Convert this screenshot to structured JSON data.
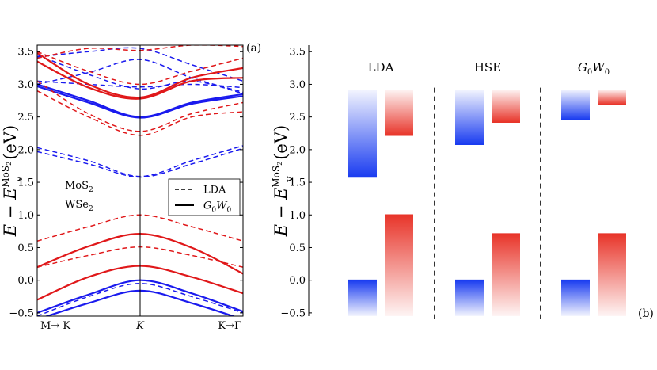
{
  "chart_data": [
    {
      "type": "line",
      "panel_label": "(a)",
      "ylabel": {
        "main": "E − E",
        "sub": "v",
        "sup": "MoS",
        "sup_sub": "2",
        "unit": "(eV)"
      },
      "x_tick_labels": [
        "M→ K",
        "K",
        "K→Γ"
      ],
      "ylim": [
        -0.55,
        3.6
      ],
      "y_ticks": [
        -0.5,
        0.0,
        0.5,
        1.0,
        1.5,
        2.0,
        2.5,
        3.0,
        3.5
      ],
      "y_tick_labels": [
        "−0.5",
        "0.0",
        "0.5",
        "1.0",
        "1.5",
        "2.0",
        "2.5",
        "3.0",
        "3.5"
      ],
      "legend": {
        "position": "center-right",
        "entries": [
          {
            "label": "LDA",
            "style": "dashed"
          },
          {
            "label": "G",
            "sub": "0",
            "label2": "W",
            "sub2": "0",
            "style": "solid"
          }
        ]
      },
      "material_labels": [
        {
          "text": "MoS",
          "sub": "2",
          "color": "#1a1aee"
        },
        {
          "text": "WSe",
          "sub": "2",
          "color": "#e0181a"
        }
      ],
      "x": [
        -1,
        -0.5,
        0,
        0.5,
        1
      ],
      "series": [
        {
          "material": "MoS2",
          "method": "LDA",
          "color": "#1a1aee",
          "values": [
            -0.55,
            -0.25,
            -0.05,
            -0.25,
            -0.5
          ]
        },
        {
          "material": "MoS2",
          "method": "LDA",
          "color": "#1a1aee",
          "values": [
            1.97,
            1.78,
            1.58,
            1.78,
            2.02
          ]
        },
        {
          "material": "MoS2",
          "method": "LDA",
          "color": "#1a1aee",
          "values": [
            2.03,
            1.83,
            1.59,
            1.83,
            2.06
          ]
        },
        {
          "material": "MoS2",
          "method": "LDA",
          "color": "#1a1aee",
          "values": [
            3.45,
            3.15,
            2.93,
            3.05,
            2.86
          ]
        },
        {
          "material": "MoS2",
          "method": "LDA",
          "color": "#1a1aee",
          "values": [
            3.05,
            3.0,
            2.96,
            3.0,
            2.95
          ]
        },
        {
          "material": "MoS2",
          "method": "LDA",
          "color": "#1a1aee",
          "values": [
            3.0,
            3.18,
            3.38,
            3.1,
            2.88
          ]
        },
        {
          "material": "MoS2",
          "method": "LDA",
          "color": "#1a1aee",
          "values": [
            3.42,
            3.5,
            3.55,
            3.3,
            3.05
          ]
        },
        {
          "material": "MoS2",
          "method": "G0W0",
          "color": "#1a1aee",
          "values": [
            -0.6,
            -0.35,
            -0.16,
            -0.35,
            -0.6
          ]
        },
        {
          "material": "MoS2",
          "method": "G0W0",
          "color": "#1a1aee",
          "values": [
            -0.5,
            -0.22,
            0.0,
            -0.2,
            -0.48
          ]
        },
        {
          "material": "MoS2",
          "method": "G0W0",
          "color": "#1a1aee",
          "values": [
            2.97,
            2.72,
            2.49,
            2.7,
            2.82
          ]
        },
        {
          "material": "MoS2",
          "method": "G0W0",
          "color": "#1a1aee",
          "values": [
            3.0,
            2.75,
            2.5,
            2.72,
            2.85
          ]
        },
        {
          "material": "WSe2",
          "method": "LDA",
          "color": "#e0181a",
          "values": [
            0.2,
            0.38,
            0.51,
            0.38,
            0.2
          ]
        },
        {
          "material": "WSe2",
          "method": "LDA",
          "color": "#e0181a",
          "values": [
            0.6,
            0.82,
            1.0,
            0.82,
            0.6
          ]
        },
        {
          "material": "WSe2",
          "method": "LDA",
          "color": "#e0181a",
          "values": [
            2.9,
            2.5,
            2.22,
            2.5,
            2.58
          ]
        },
        {
          "material": "WSe2",
          "method": "LDA",
          "color": "#e0181a",
          "values": [
            3.05,
            2.55,
            2.28,
            2.55,
            2.72
          ]
        },
        {
          "material": "WSe2",
          "method": "LDA",
          "color": "#e0181a",
          "values": [
            3.5,
            3.2,
            3.0,
            3.2,
            3.4
          ]
        },
        {
          "material": "WSe2",
          "method": "LDA",
          "color": "#e0181a",
          "values": [
            3.4,
            3.55,
            3.52,
            3.6,
            3.58
          ]
        },
        {
          "material": "WSe2",
          "method": "G0W0",
          "color": "#e0181a",
          "values": [
            -0.3,
            0.05,
            0.22,
            0.05,
            -0.2
          ]
        },
        {
          "material": "WSe2",
          "method": "G0W0",
          "color": "#e0181a",
          "values": [
            0.2,
            0.52,
            0.71,
            0.5,
            0.1
          ]
        },
        {
          "material": "WSe2",
          "method": "G0W0",
          "color": "#e0181a",
          "values": [
            3.35,
            2.95,
            2.78,
            3.05,
            3.1
          ]
        },
        {
          "material": "WSe2",
          "method": "G0W0",
          "color": "#e0181a",
          "values": [
            3.48,
            3.0,
            2.8,
            3.1,
            3.25
          ]
        }
      ]
    },
    {
      "type": "bar",
      "panel_label": "(b)",
      "ylabel": {
        "main": "E − E",
        "sub": "v",
        "sup": "MoS",
        "sup_sub": "2",
        "unit": "(eV)"
      },
      "ylim": [
        -0.55,
        3.6
      ],
      "y_ticks": [
        -0.5,
        0.0,
        0.5,
        1.0,
        1.5,
        2.0,
        2.5,
        3.0,
        3.5
      ],
      "y_tick_labels": [
        "−0.5",
        "0.0",
        "0.5",
        "1.0",
        "1.5",
        "2.0",
        "2.5",
        "3.0",
        "3.5"
      ],
      "groups": [
        {
          "label": "LDA",
          "label_parts": [],
          "MoS2": {
            "vbm": 0.0,
            "cbm": 1.58
          },
          "WSe2": {
            "vbm": 1.0,
            "cbm": 2.22
          }
        },
        {
          "label": "HSE",
          "label_parts": [],
          "MoS2": {
            "vbm": 0.0,
            "cbm": 2.08
          },
          "WSe2": {
            "vbm": 0.71,
            "cbm": 2.42
          }
        },
        {
          "label": "G",
          "label_parts": [
            "0",
            "W",
            "0"
          ],
          "MoS2": {
            "vbm": 0.0,
            "cbm": 2.46
          },
          "WSe2": {
            "vbm": 0.71,
            "cbm": 2.69
          }
        }
      ],
      "colors": {
        "MoS2": "#1a3cf0",
        "WSe2": "#e8352a"
      }
    }
  ]
}
